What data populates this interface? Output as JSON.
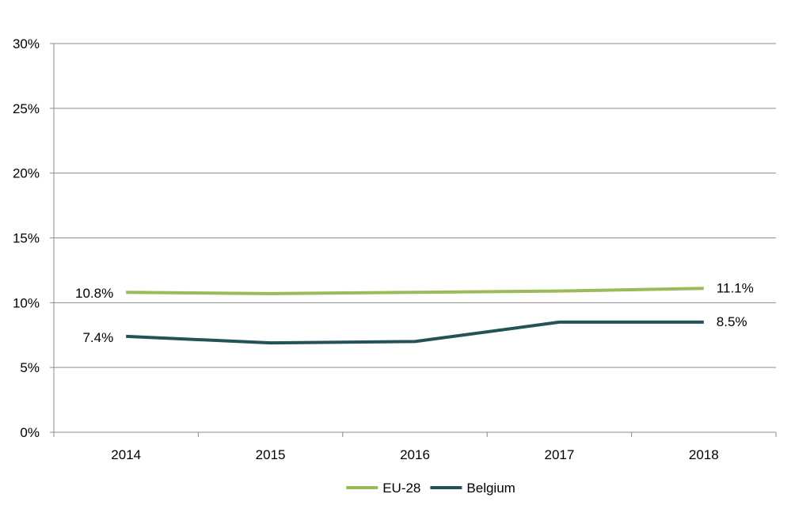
{
  "chart_data": {
    "type": "line",
    "categories": [
      "2014",
      "2015",
      "2016",
      "2017",
      "2018"
    ],
    "series": [
      {
        "name": "EU-28",
        "color": "#9bbb59",
        "values": [
          10.8,
          10.7,
          10.8,
          10.9,
          11.1
        ]
      },
      {
        "name": "Belgium",
        "color": "#235257",
        "values": [
          7.4,
          6.9,
          7.0,
          8.5,
          8.5
        ]
      }
    ],
    "ylim": [
      0,
      30
    ],
    "yticks": [
      0,
      5,
      10,
      15,
      20,
      25,
      30
    ],
    "ytick_labels": [
      "0%",
      "5%",
      "10%",
      "15%",
      "20%",
      "25%",
      "30%"
    ],
    "data_labels": [
      {
        "series": "EU-28",
        "index": 0,
        "text": "10.8%",
        "side": "left"
      },
      {
        "series": "EU-28",
        "index": 4,
        "text": "11.1%",
        "side": "right"
      },
      {
        "series": "Belgium",
        "index": 0,
        "text": "7.4%",
        "side": "left"
      },
      {
        "series": "Belgium",
        "index": 4,
        "text": "8.5%",
        "side": "right"
      }
    ],
    "grid": true,
    "legend": "bottom-center",
    "title": "",
    "xlabel": "",
    "ylabel": ""
  }
}
